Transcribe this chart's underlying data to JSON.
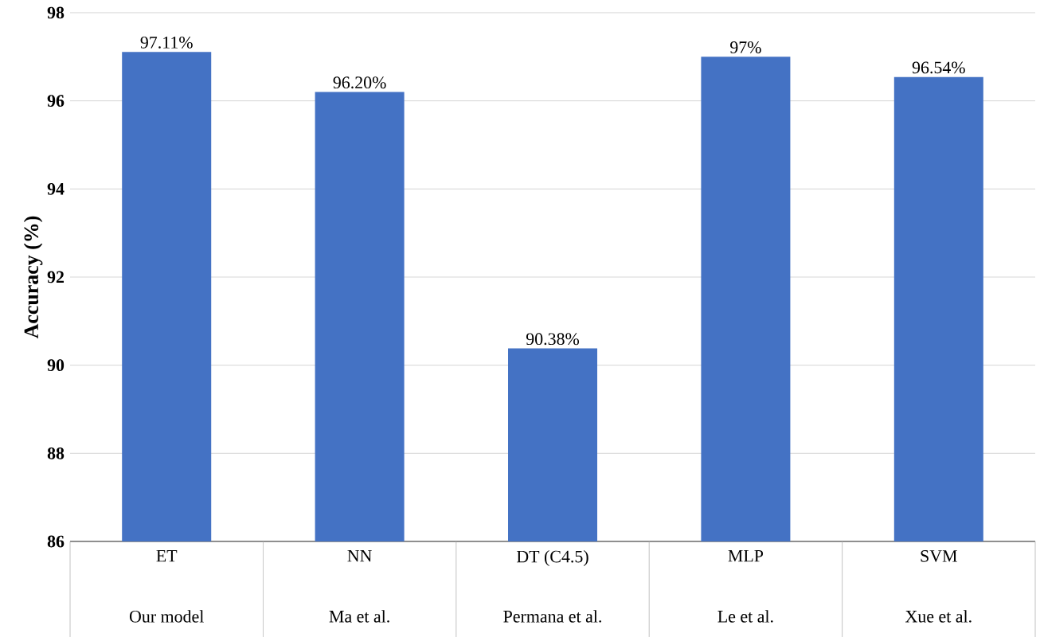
{
  "chart_data": {
    "type": "bar",
    "ylabel": "Accuracy (%)",
    "categories": [
      "ET",
      "NN",
      "DT (C4.5)",
      "MLP",
      "SVM"
    ],
    "annotations": [
      "Our model",
      "Ma et al.",
      "Permana et al.",
      "Le et al.",
      "Xue et al."
    ],
    "values": [
      97.11,
      96.2,
      90.38,
      97,
      96.54
    ],
    "value_labels": [
      "97.11%",
      "96.20%",
      "90.38%",
      "97%",
      "96.54%"
    ],
    "color": "#4472c4",
    "ylim": [
      86,
      98
    ],
    "yticks": [
      86,
      88,
      90,
      92,
      94,
      96,
      98
    ],
    "grid": "y"
  }
}
